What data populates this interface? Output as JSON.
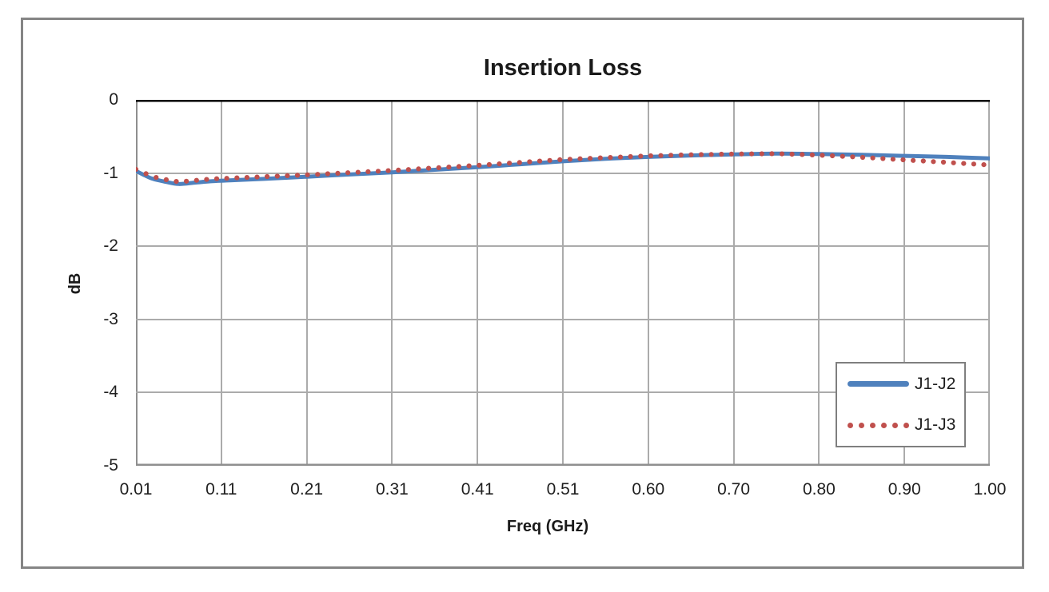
{
  "chart_data": {
    "type": "line",
    "title": "Insertion Loss",
    "xlabel": "Freq (GHz)",
    "ylabel": "dB",
    "x_tick_labels": [
      "0.01",
      "0.11",
      "0.21",
      "0.31",
      "0.41",
      "0.51",
      "0.60",
      "0.70",
      "0.80",
      "0.90",
      "1.00"
    ],
    "y_tick_labels": [
      "0",
      "-1",
      "-2",
      "-3",
      "-4",
      "-5"
    ],
    "y_ticks": [
      0,
      -1,
      -2,
      -3,
      -4,
      -5
    ],
    "ylim": [
      -5,
      0
    ],
    "grid": true,
    "legend_position": "inside-bottom-right",
    "colors": {
      "series_blue": "#4F81BD",
      "series_red": "#C0504D",
      "gridline": "#ABABAB",
      "axis_line": "#8F8F8F",
      "zero_line": "#000000",
      "chart_border": "#858585",
      "legend_border": "#7F7F7F",
      "text": "#1F1F1F"
    },
    "series": [
      {
        "name": "J1-J2",
        "style": "solid",
        "color": "#4F81BD",
        "points": [
          [
            0.01,
            -0.97
          ],
          [
            0.02,
            -1.03
          ],
          [
            0.03,
            -1.08
          ],
          [
            0.045,
            -1.12
          ],
          [
            0.06,
            -1.15
          ],
          [
            0.08,
            -1.13
          ],
          [
            0.1,
            -1.11
          ],
          [
            0.12,
            -1.1
          ],
          [
            0.16,
            -1.08
          ],
          [
            0.21,
            -1.05
          ],
          [
            0.26,
            -1.02
          ],
          [
            0.31,
            -0.99
          ],
          [
            0.36,
            -0.955
          ],
          [
            0.41,
            -0.92
          ],
          [
            0.46,
            -0.88
          ],
          [
            0.51,
            -0.84
          ],
          [
            0.555,
            -0.805
          ],
          [
            0.6,
            -0.78
          ],
          [
            0.65,
            -0.76
          ],
          [
            0.7,
            -0.745
          ],
          [
            0.75,
            -0.735
          ],
          [
            0.8,
            -0.74
          ],
          [
            0.85,
            -0.75
          ],
          [
            0.9,
            -0.765
          ],
          [
            0.95,
            -0.78
          ],
          [
            1.0,
            -0.8
          ]
        ]
      },
      {
        "name": "J1-J3",
        "style": "dotted",
        "color": "#C0504D",
        "points": [
          [
            0.01,
            -0.95
          ],
          [
            0.02,
            -1.0
          ],
          [
            0.03,
            -1.05
          ],
          [
            0.045,
            -1.09
          ],
          [
            0.06,
            -1.12
          ],
          [
            0.08,
            -1.1
          ],
          [
            0.1,
            -1.08
          ],
          [
            0.12,
            -1.07
          ],
          [
            0.16,
            -1.05
          ],
          [
            0.21,
            -1.025
          ],
          [
            0.26,
            -0.995
          ],
          [
            0.31,
            -0.965
          ],
          [
            0.36,
            -0.93
          ],
          [
            0.41,
            -0.895
          ],
          [
            0.46,
            -0.855
          ],
          [
            0.51,
            -0.815
          ],
          [
            0.555,
            -0.79
          ],
          [
            0.6,
            -0.765
          ],
          [
            0.65,
            -0.75
          ],
          [
            0.7,
            -0.74
          ],
          [
            0.75,
            -0.735
          ],
          [
            0.8,
            -0.755
          ],
          [
            0.85,
            -0.785
          ],
          [
            0.9,
            -0.82
          ],
          [
            0.95,
            -0.855
          ],
          [
            1.0,
            -0.89
          ]
        ]
      }
    ]
  }
}
